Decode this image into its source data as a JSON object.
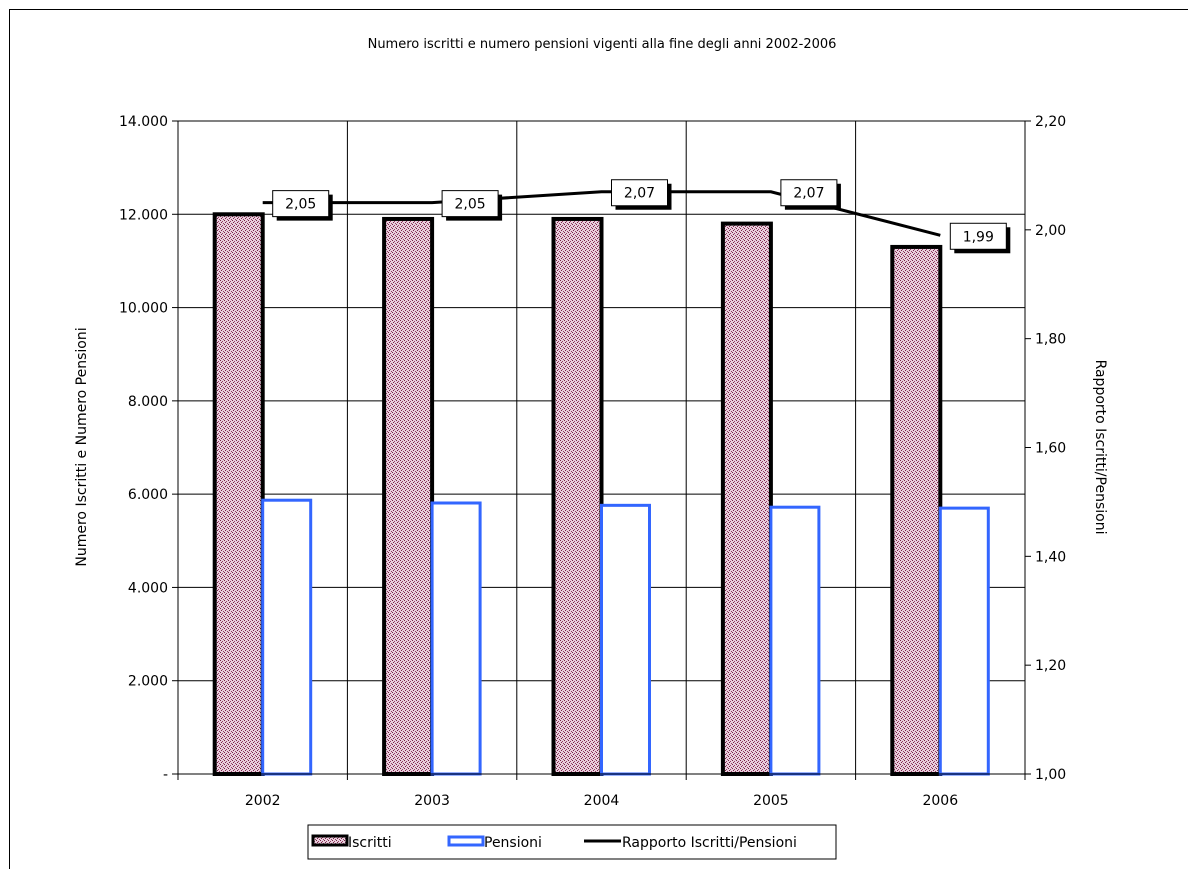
{
  "chart_data": {
    "type": "bar",
    "title": "Numero iscritti e numero pensioni vigenti alla fine degli anni 2002-2006",
    "categories": [
      "2002",
      "2003",
      "2004",
      "2005",
      "2006"
    ],
    "ylabel": "Numero Iscritti e Numero Pensioni",
    "y2label": "Rapporto Iscritti/Pensioni",
    "ylim": [
      0,
      14000
    ],
    "y2lim": [
      1.0,
      2.2
    ],
    "yticks": [
      "-",
      "2.000",
      "4.000",
      "6.000",
      "8.000",
      "10.000",
      "12.000",
      "14.000"
    ],
    "y2ticks": [
      "1,00",
      "1,20",
      "1,40",
      "1,60",
      "1,80",
      "2,00",
      "2,20"
    ],
    "grid": true,
    "legend_position": "bottom",
    "series": [
      {
        "name": "Iscritti",
        "type": "bar",
        "values": [
          12000,
          11900,
          11900,
          11800,
          11300
        ],
        "color": "#8b3a5a"
      },
      {
        "name": "Pensioni",
        "type": "bar",
        "values": [
          5870,
          5810,
          5760,
          5720,
          5700
        ],
        "color": "#3366ff"
      },
      {
        "name": "Rapporto Iscritti/Pensioni",
        "type": "line",
        "axis": "right",
        "values": [
          2.05,
          2.05,
          2.07,
          2.07,
          1.99
        ],
        "labels": [
          "2,05",
          "2,05",
          "2,07",
          "2,07",
          "1,99"
        ],
        "color": "#000000"
      }
    ]
  }
}
